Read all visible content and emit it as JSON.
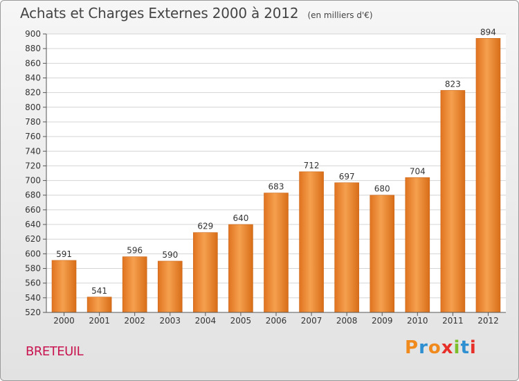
{
  "header": {
    "title": "Achats et Charges Externes 2000 à 2012",
    "subtitle": "(en milliers d'€)"
  },
  "footer": {
    "town": "BRETEUIL",
    "brand": "Proxiti",
    "brand_colors": [
      "#f08a1c",
      "#2e8fd1",
      "#f08a1c",
      "#e8302a",
      "#7cbf2a",
      "#2e8fd1",
      "#e8302a"
    ]
  },
  "chart_data": {
    "type": "bar",
    "title": "Achats et Charges Externes 2000 à 2012",
    "subtitle": "(en milliers d'€)",
    "categories": [
      "2000",
      "2001",
      "2002",
      "2003",
      "2004",
      "2005",
      "2006",
      "2007",
      "2008",
      "2009",
      "2010",
      "2011",
      "2012"
    ],
    "values": [
      591,
      541,
      596,
      590,
      629,
      640,
      683,
      712,
      697,
      680,
      704,
      823,
      894
    ],
    "ylim": [
      520,
      900
    ],
    "yticks": [
      520,
      540,
      560,
      580,
      600,
      620,
      640,
      660,
      680,
      700,
      720,
      740,
      760,
      780,
      800,
      820,
      840,
      860,
      880,
      900
    ],
    "grid": true,
    "bar_color": "#f0893a"
  }
}
